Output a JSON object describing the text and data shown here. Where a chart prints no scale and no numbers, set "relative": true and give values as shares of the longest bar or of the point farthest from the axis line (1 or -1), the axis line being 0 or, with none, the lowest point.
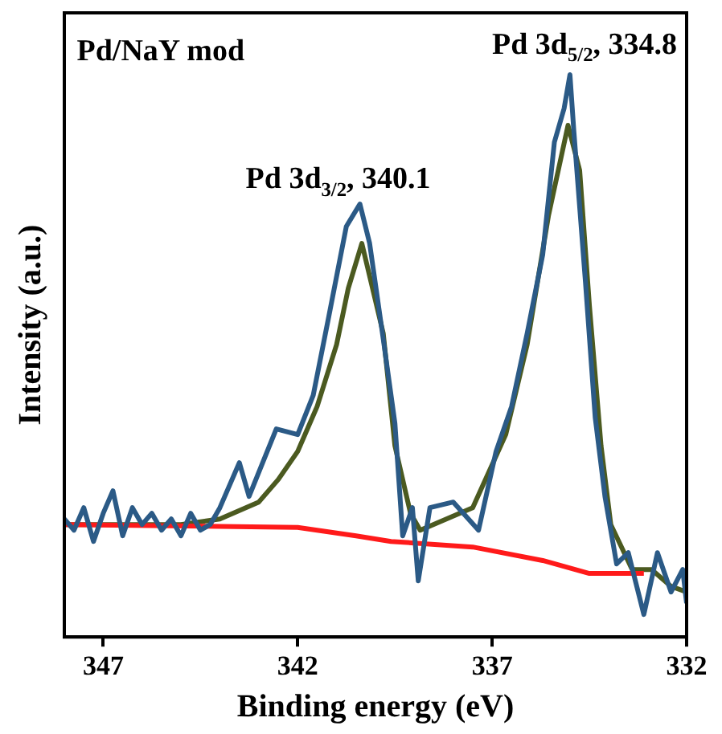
{
  "chart_data": {
    "type": "line",
    "relative": true,
    "xlabel": "Binding energy (eV)",
    "ylabel": "Intensity (a.u.)",
    "xlim": [
      348,
      332
    ],
    "xticks": [
      347,
      342,
      337,
      332
    ],
    "grid": false,
    "legend": false,
    "marker": "none",
    "line_style": "solid",
    "annotations": [
      "Pd/NaY mod",
      "Pd 3d$_{3/2}$, 340.1",
      "Pd 3d$_{5/2}$, 334.8"
    ],
    "series": [
      {
        "color": "#2b5a86",
        "x": [
          348,
          347.75,
          347.5,
          347.25,
          347,
          346.75,
          346.5,
          346.25,
          346,
          345.75,
          345.5,
          345.25,
          345,
          344.75,
          344.5,
          344.25,
          344,
          343.5,
          343.25,
          342.55,
          342,
          341.6,
          341.2,
          340.75,
          340.4,
          340.15,
          339.8,
          339.5,
          339.3,
          339.05,
          338.9,
          338.6,
          338,
          337.35,
          336.9,
          336.5,
          336.1,
          335.7,
          335.4,
          335.15,
          335,
          334.9,
          334.6,
          334.35,
          334.1,
          333.8,
          333.5,
          333.1,
          332.75,
          332.4,
          332.1,
          332
        ],
        "values": [
          0.21,
          0.19,
          0.23,
          0.17,
          0.22,
          0.26,
          0.18,
          0.23,
          0.2,
          0.22,
          0.19,
          0.21,
          0.18,
          0.22,
          0.19,
          0.2,
          0.23,
          0.31,
          0.25,
          0.37,
          0.36,
          0.43,
          0.57,
          0.73,
          0.77,
          0.7,
          0.53,
          0.38,
          0.18,
          0.23,
          0.1,
          0.23,
          0.24,
          0.19,
          0.33,
          0.41,
          0.54,
          0.68,
          0.88,
          0.94,
          1.0,
          0.9,
          0.63,
          0.39,
          0.25,
          0.13,
          0.15,
          0.04,
          0.15,
          0.08,
          0.12,
          0.06
        ]
      },
      {
        "color": "#ff1a1a",
        "x": [
          348,
          342,
          340.5,
          339.6,
          337.5,
          335.7,
          334.5,
          333.1
        ],
        "values": [
          0.2,
          0.195,
          0.18,
          0.17,
          0.16,
          0.136,
          0.113,
          0.113
        ]
      },
      {
        "color": "#4b5a20",
        "x": [
          348,
          345,
          344,
          343,
          342.5,
          342,
          341.5,
          341,
          340.7,
          340.35,
          339.8,
          339.5,
          339.1,
          338.85,
          337.5,
          336.65,
          336.1,
          335.55,
          335.05,
          334.75,
          334.5,
          334.2,
          333.95,
          333.4,
          332.9,
          332.4,
          332
        ],
        "values": [
          0.2,
          0.2,
          0.21,
          0.24,
          0.28,
          0.33,
          0.41,
          0.52,
          0.62,
          0.7,
          0.54,
          0.34,
          0.22,
          0.19,
          0.23,
          0.36,
          0.52,
          0.75,
          0.91,
          0.83,
          0.59,
          0.34,
          0.2,
          0.12,
          0.12,
          0.09,
          0.08
        ]
      }
    ]
  }
}
